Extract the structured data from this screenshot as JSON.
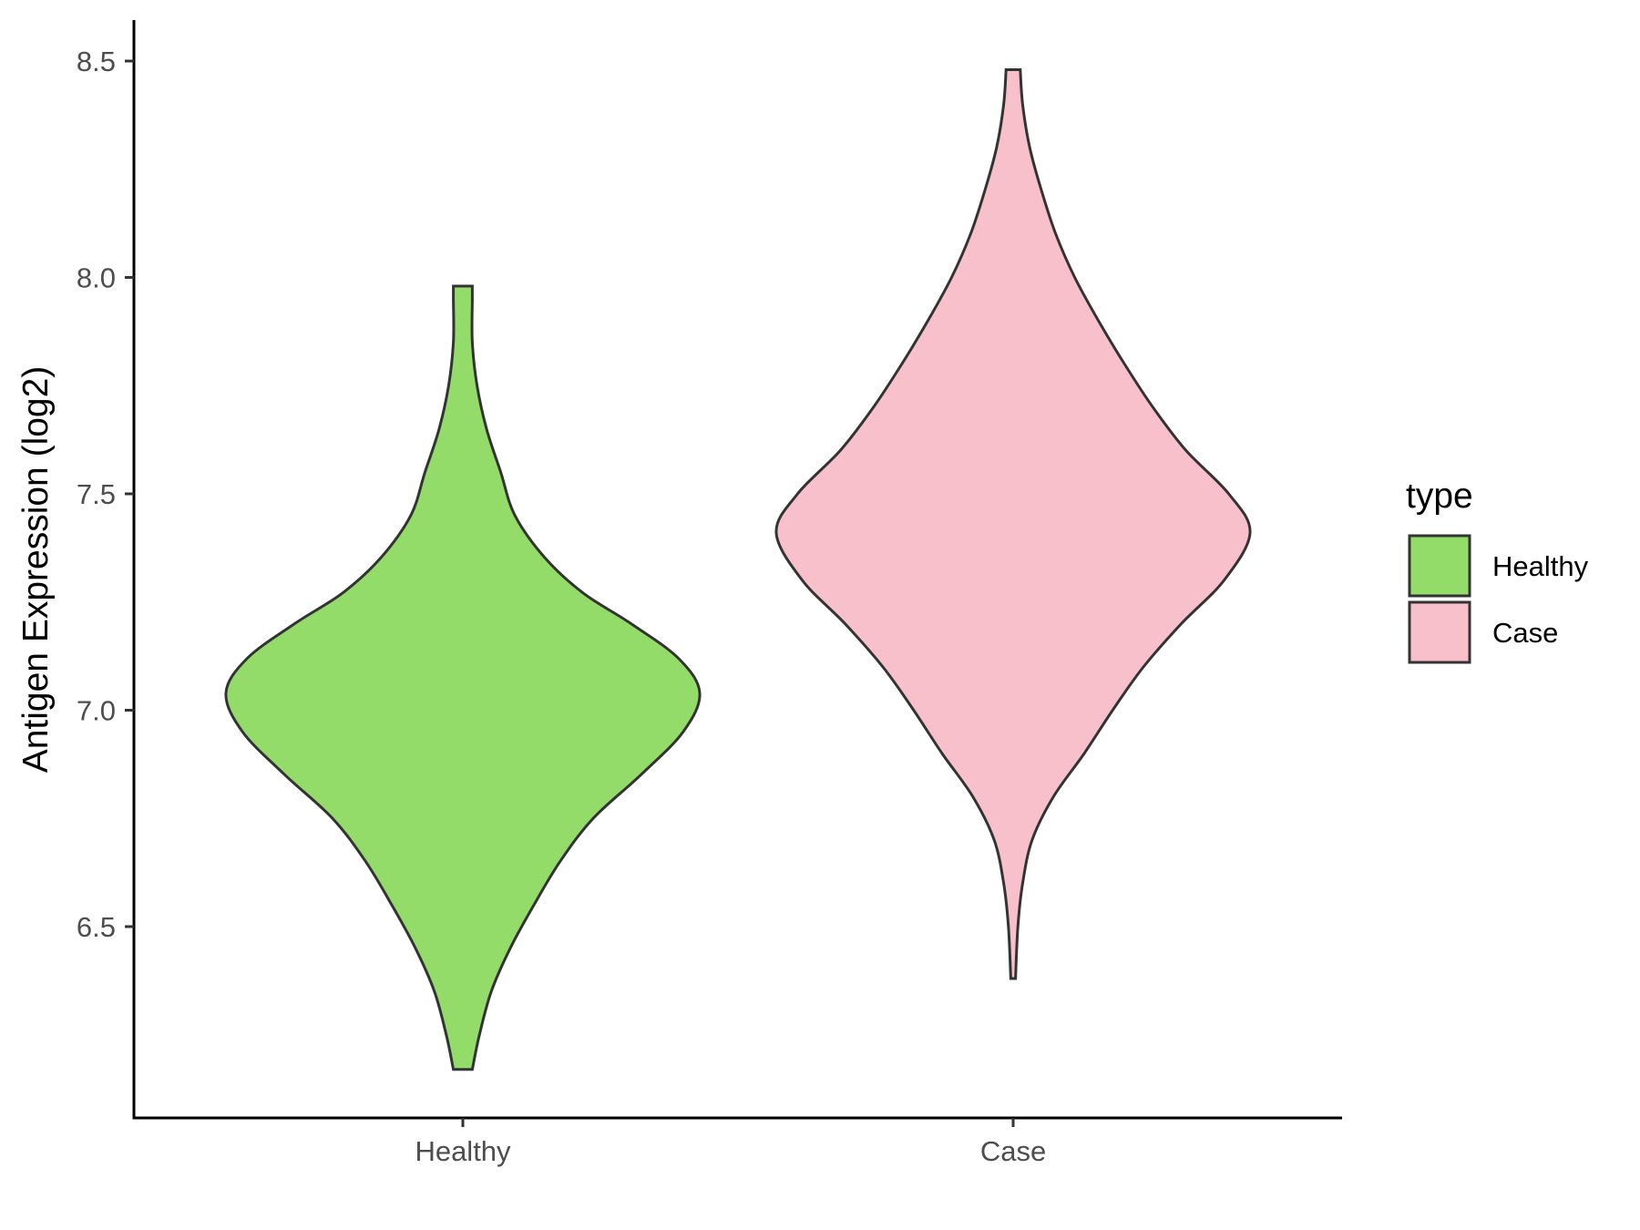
{
  "chart_data": {
    "type": "violin",
    "title": "",
    "xlabel": "",
    "ylabel": "Antigen Expression (log2)",
    "ylim": [
      6.08,
      8.6
    ],
    "yticks": [
      "6.5",
      "7.0",
      "7.5",
      "8.0",
      "8.5"
    ],
    "categories": [
      "Healthy",
      "Case"
    ],
    "grid": false,
    "legend": {
      "title": "type",
      "position": "right",
      "entries": [
        "Healthy",
        "Case"
      ]
    },
    "series": [
      {
        "name": "Healthy",
        "color": "#93dc6a",
        "min": 6.17,
        "max": 7.98,
        "density_profile": [
          {
            "y": 6.17,
            "w": 0.04
          },
          {
            "y": 6.25,
            "w": 0.07
          },
          {
            "y": 6.35,
            "w": 0.12
          },
          {
            "y": 6.45,
            "w": 0.2
          },
          {
            "y": 6.55,
            "w": 0.3
          },
          {
            "y": 6.65,
            "w": 0.41
          },
          {
            "y": 6.75,
            "w": 0.55
          },
          {
            "y": 6.85,
            "w": 0.75
          },
          {
            "y": 6.95,
            "w": 0.93
          },
          {
            "y": 7.04,
            "w": 1.0
          },
          {
            "y": 7.12,
            "w": 0.91
          },
          {
            "y": 7.2,
            "w": 0.71
          },
          {
            "y": 7.27,
            "w": 0.51
          },
          {
            "y": 7.35,
            "w": 0.35
          },
          {
            "y": 7.45,
            "w": 0.22
          },
          {
            "y": 7.55,
            "w": 0.16
          },
          {
            "y": 7.65,
            "w": 0.1
          },
          {
            "y": 7.75,
            "w": 0.06
          },
          {
            "y": 7.85,
            "w": 0.04
          },
          {
            "y": 7.95,
            "w": 0.04
          },
          {
            "y": 7.98,
            "w": 0.04
          }
        ]
      },
      {
        "name": "Case",
        "color": "#f7c0cb",
        "min": 6.38,
        "max": 8.48,
        "density_profile": [
          {
            "y": 6.38,
            "w": 0.01
          },
          {
            "y": 6.5,
            "w": 0.02
          },
          {
            "y": 6.6,
            "w": 0.04
          },
          {
            "y": 6.7,
            "w": 0.08
          },
          {
            "y": 6.8,
            "w": 0.17
          },
          {
            "y": 6.9,
            "w": 0.3
          },
          {
            "y": 7.0,
            "w": 0.42
          },
          {
            "y": 7.1,
            "w": 0.55
          },
          {
            "y": 7.2,
            "w": 0.71
          },
          {
            "y": 7.3,
            "w": 0.89
          },
          {
            "y": 7.41,
            "w": 1.0
          },
          {
            "y": 7.5,
            "w": 0.91
          },
          {
            "y": 7.6,
            "w": 0.73
          },
          {
            "y": 7.7,
            "w": 0.59
          },
          {
            "y": 7.8,
            "w": 0.47
          },
          {
            "y": 7.9,
            "w": 0.36
          },
          {
            "y": 8.0,
            "w": 0.26
          },
          {
            "y": 8.1,
            "w": 0.18
          },
          {
            "y": 8.2,
            "w": 0.12
          },
          {
            "y": 8.3,
            "w": 0.07
          },
          {
            "y": 8.4,
            "w": 0.04
          },
          {
            "y": 8.48,
            "w": 0.03
          }
        ]
      }
    ]
  }
}
